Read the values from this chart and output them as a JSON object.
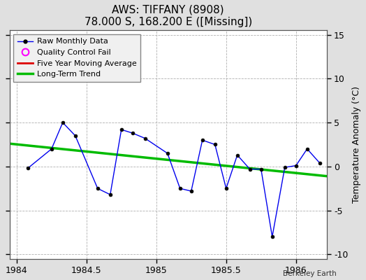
{
  "title": "AWS: TIFFANY (8908)",
  "subtitle": "78.000 S, 168.200 E ([Missing])",
  "ylabel": "Temperature Anomaly (°C)",
  "credit": "Berkeley Earth",
  "xlim": [
    1983.95,
    1986.22
  ],
  "ylim": [
    -10.5,
    15.5
  ],
  "yticks": [
    -10,
    -5,
    0,
    5,
    10,
    15
  ],
  "xticks": [
    1984,
    1984.5,
    1985,
    1985.5,
    1986
  ],
  "xtick_labels": [
    "1984",
    "1984.5",
    "1985",
    "1985.5",
    "1986"
  ],
  "background_color": "#e0e0e0",
  "plot_bg_color": "#ffffff",
  "grid_color": "#b0b0b0",
  "raw_x": [
    1984.08,
    1984.25,
    1984.33,
    1984.42,
    1984.58,
    1984.67,
    1984.75,
    1984.83,
    1984.92,
    1985.08,
    1985.17,
    1985.25,
    1985.33,
    1985.42,
    1985.5,
    1985.58,
    1985.67,
    1985.75,
    1985.83,
    1985.92,
    1986.0,
    1986.08,
    1986.17
  ],
  "raw_y": [
    -0.2,
    2.0,
    5.0,
    3.5,
    -2.5,
    -3.2,
    4.2,
    3.8,
    3.2,
    1.5,
    -2.5,
    -2.8,
    3.0,
    2.5,
    -2.5,
    1.3,
    -0.3,
    -0.3,
    -8.0,
    -0.1,
    0.1,
    2.0,
    0.4
  ],
  "trend_x": [
    1983.95,
    1986.22
  ],
  "trend_y": [
    2.6,
    -1.1
  ],
  "line_color": "#0000ee",
  "marker_color": "#000000",
  "trend_color": "#00bb00",
  "mavg_color": "#dd0000",
  "qc_color": "#ff00ff",
  "legend_entries": [
    "Raw Monthly Data",
    "Quality Control Fail",
    "Five Year Moving Average",
    "Long-Term Trend"
  ]
}
